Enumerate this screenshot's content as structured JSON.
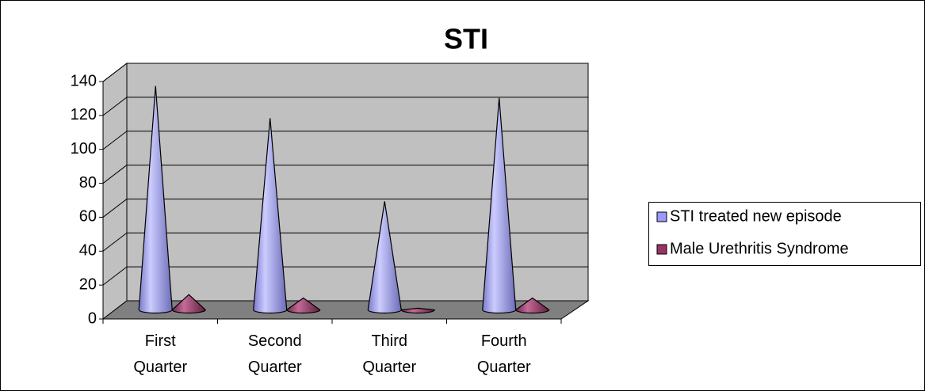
{
  "chart_data": {
    "type": "cone",
    "title": "STI",
    "categories": [
      "First Quarter",
      "Second Quarter",
      "Third Quarter",
      "Fourth Quarter"
    ],
    "series": [
      {
        "name": "STI treated new episode",
        "color": "#9999ff",
        "values": [
          132,
          113,
          64,
          125
        ]
      },
      {
        "name": "Male Urethritis Syndrome",
        "color": "#993366",
        "values": [
          9,
          7,
          1,
          7
        ]
      }
    ],
    "ylim": [
      0,
      140
    ],
    "yticks": [
      0,
      20,
      40,
      60,
      80,
      100,
      120,
      140
    ],
    "grid": true,
    "legend": "right"
  }
}
